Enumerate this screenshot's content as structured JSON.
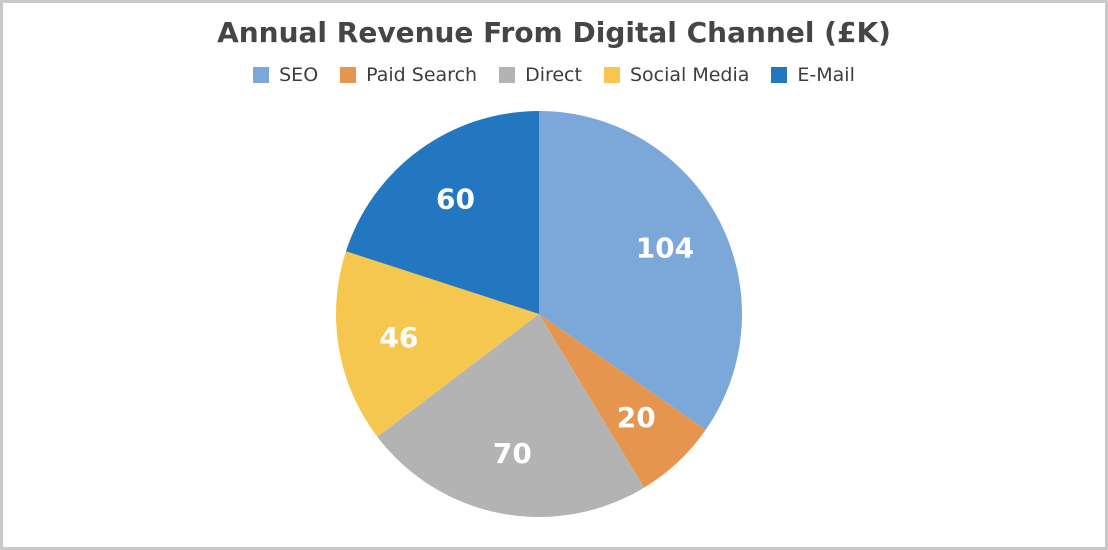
{
  "chart_data": {
    "type": "pie",
    "title": "Annual Revenue From Digital Channel (£K)",
    "categories": [
      "SEO",
      "Paid Search",
      "Direct",
      "Social Media",
      "E-Mail"
    ],
    "values": [
      104,
      20,
      70,
      46,
      60
    ],
    "colors": [
      "#7ba7d9",
      "#e6954e",
      "#b3b3b3",
      "#f5c74e",
      "#2377c1"
    ],
    "legend_position": "top",
    "start_angle": "12 o'clock",
    "direction": "clockwise",
    "data_labels": [
      "104",
      "20",
      "70",
      "46",
      "60"
    ]
  }
}
